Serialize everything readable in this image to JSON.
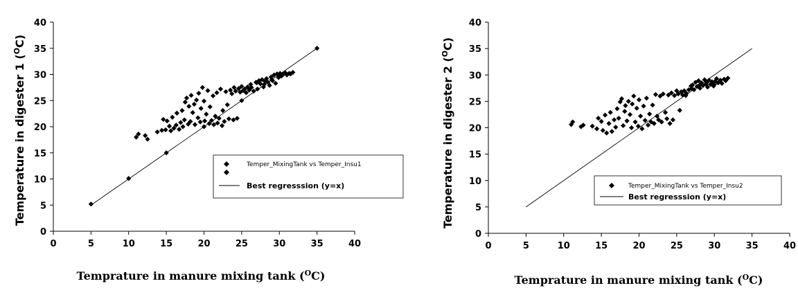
{
  "chart_data": [
    {
      "type": "scatter",
      "xlabel": "Temprature in manure mixing tank (",
      "xlabel_sup": "O",
      "xlabel_end": "C)",
      "ylabel": "Temperature in digester 1 (",
      "ylabel_sup": "O",
      "ylabel_end": "C)",
      "xlim": [
        0,
        40
      ],
      "ylim": [
        0,
        40
      ],
      "xticks": [
        0,
        5,
        10,
        15,
        20,
        25,
        30,
        35,
        40
      ],
      "yticks": [
        0,
        5,
        10,
        15,
        20,
        25,
        30,
        35,
        40
      ],
      "grid": false,
      "legend": [
        {
          "label": "Temper_MixingTank vs Temper_Insu1",
          "marker": "diamond"
        },
        {
          "label": "Best regresssion (y=x)",
          "marker": "line"
        }
      ],
      "series": [
        {
          "name": "Temper_MixingTank vs Temper_Insu1",
          "points": [
            [
              5,
              5.2
            ],
            [
              10,
              10.1
            ],
            [
              15,
              15
            ],
            [
              20,
              20
            ],
            [
              25,
              25
            ],
            [
              30,
              30
            ],
            [
              35,
              35
            ],
            [
              11,
              18
            ],
            [
              11.3,
              18.6
            ],
            [
              12.2,
              18.3
            ],
            [
              12.5,
              17.6
            ],
            [
              13.8,
              19
            ],
            [
              14.4,
              19.3
            ],
            [
              14.6,
              21.4
            ],
            [
              14.9,
              19.4
            ],
            [
              15.1,
              21.1
            ],
            [
              15.4,
              20.1
            ],
            [
              15.6,
              19.2
            ],
            [
              15.8,
              21.8
            ],
            [
              16,
              19.7
            ],
            [
              16.3,
              20.3
            ],
            [
              16.4,
              22.6
            ],
            [
              16.7,
              19.5
            ],
            [
              16.9,
              20.8
            ],
            [
              17.1,
              23.1
            ],
            [
              17.2,
              20
            ],
            [
              17.4,
              21.3
            ],
            [
              17.5,
              24.7
            ],
            [
              17.7,
              25.5
            ],
            [
              17.9,
              20.5
            ],
            [
              18,
              23.9
            ],
            [
              18.2,
              21
            ],
            [
              18.3,
              26
            ],
            [
              18.5,
              22.7
            ],
            [
              18.7,
              24.3
            ],
            [
              18.8,
              20.4
            ],
            [
              19,
              25.1
            ],
            [
              19.2,
              21.7
            ],
            [
              19.3,
              26.4
            ],
            [
              19.5,
              20.9
            ],
            [
              19.6,
              23.5
            ],
            [
              19.8,
              27.5
            ],
            [
              20,
              24.9
            ],
            [
              20.1,
              21.1
            ],
            [
              20.3,
              22.4
            ],
            [
              20.5,
              26.9
            ],
            [
              20.7,
              20.6
            ],
            [
              20.8,
              23.8
            ],
            [
              21,
              21.2
            ],
            [
              21.2,
              25.9
            ],
            [
              21.3,
              20.4
            ],
            [
              21.5,
              22
            ],
            [
              21.7,
              26.5
            ],
            [
              21.8,
              20.7
            ],
            [
              22,
              21.6
            ],
            [
              22.2,
              27.2
            ],
            [
              22.4,
              20.2
            ],
            [
              22.5,
              23.1
            ],
            [
              22.7,
              21
            ],
            [
              22.9,
              26.7
            ],
            [
              23.1,
              24.2
            ],
            [
              23.3,
              21.5
            ],
            [
              23.5,
              27
            ],
            [
              23.7,
              26.3
            ],
            [
              23.9,
              21.3
            ],
            [
              24,
              27.5
            ],
            [
              24.2,
              26.8
            ],
            [
              24.4,
              21.6
            ],
            [
              24.6,
              27.3
            ],
            [
              24.8,
              26.6
            ],
            [
              25,
              27.7
            ],
            [
              25.2,
              26.9
            ],
            [
              25.4,
              27.2
            ],
            [
              25.6,
              26.5
            ],
            [
              25.8,
              27.6
            ],
            [
              26,
              27
            ],
            [
              26.3,
              27.5
            ],
            [
              26.6,
              26.8
            ],
            [
              26.9,
              28.5
            ],
            [
              27.1,
              27.2
            ],
            [
              27.3,
              28.8
            ],
            [
              27.5,
              28.2
            ],
            [
              27.7,
              29
            ],
            [
              27.9,
              27.6
            ],
            [
              28.1,
              28.7
            ],
            [
              28.3,
              29.2
            ],
            [
              28.5,
              28.5
            ],
            [
              28.7,
              27.9
            ],
            [
              28.9,
              29.5
            ],
            [
              29.1,
              28.8
            ],
            [
              29.3,
              29.9
            ],
            [
              29.5,
              28.3
            ],
            [
              29.7,
              30.1
            ],
            [
              29.9,
              29.4
            ],
            [
              30.1,
              30.2
            ],
            [
              30.3,
              29.7
            ],
            [
              30.5,
              30
            ],
            [
              30.8,
              30.3
            ],
            [
              31,
              29.9
            ],
            [
              31.3,
              30.2
            ],
            [
              31.5,
              30.1
            ],
            [
              31.8,
              30.4
            ],
            [
              26.2,
              28.1
            ],
            [
              27,
              28.4
            ],
            [
              28,
              28.1
            ],
            [
              29,
              29
            ],
            [
              30,
              29.6
            ]
          ]
        },
        {
          "name": "Best regresssion (y=x)",
          "line": [
            [
              5,
              5
            ],
            [
              35,
              35
            ]
          ]
        }
      ]
    },
    {
      "type": "scatter",
      "xlabel": "Temprature in manure mixing tank (",
      "xlabel_sup": "O",
      "xlabel_end": "C)",
      "ylabel": "Temperature in digester 2 (",
      "ylabel_sup": "O",
      "ylabel_end": "C)",
      "xlim": [
        0,
        40
      ],
      "ylim": [
        0,
        40
      ],
      "xticks": [
        0,
        5,
        10,
        15,
        20,
        25,
        30,
        35,
        40
      ],
      "yticks": [
        0,
        5,
        10,
        15,
        20,
        25,
        30,
        35,
        40
      ],
      "grid": false,
      "legend": [
        {
          "label": "Temper_MixingTank vs Temper_Insu2",
          "marker": "diamond"
        },
        {
          "label": "Best regresssion (y=x)",
          "marker": "line"
        }
      ],
      "series": [
        {
          "name": "Temper_MixingTank vs Temper_Insu2",
          "points": [
            [
              11,
              20.6
            ],
            [
              11.2,
              21.1
            ],
            [
              12.3,
              20.2
            ],
            [
              12.6,
              20.5
            ],
            [
              13.8,
              20.3
            ],
            [
              14.4,
              19.8
            ],
            [
              14.6,
              21.8
            ],
            [
              15,
              21.2
            ],
            [
              15.2,
              19.5
            ],
            [
              15.5,
              22.4
            ],
            [
              15.7,
              19
            ],
            [
              16,
              20.8
            ],
            [
              16.2,
              22.9
            ],
            [
              16.4,
              19.3
            ],
            [
              16.7,
              21.5
            ],
            [
              16.9,
              20.1
            ],
            [
              17.1,
              23.6
            ],
            [
              17.3,
              21.8
            ],
            [
              17.5,
              24.9
            ],
            [
              17.7,
              25.5
            ],
            [
              17.9,
              20.4
            ],
            [
              18.1,
              23.1
            ],
            [
              18.2,
              24.2
            ],
            [
              18.4,
              21.3
            ],
            [
              18.6,
              25
            ],
            [
              18.8,
              22.5
            ],
            [
              19,
              20
            ],
            [
              19.1,
              24.5
            ],
            [
              19.3,
              26
            ],
            [
              19.5,
              21.1
            ],
            [
              19.7,
              23.7
            ],
            [
              19.9,
              20.3
            ],
            [
              20,
              25.3
            ],
            [
              20.2,
              22.2
            ],
            [
              20.4,
              19.8
            ],
            [
              20.6,
              24.1
            ],
            [
              20.8,
              21.4
            ],
            [
              21,
              25.6
            ],
            [
              21.2,
              20.5
            ],
            [
              21.4,
              22.6
            ],
            [
              21.6,
              21.1
            ],
            [
              21.8,
              24.3
            ],
            [
              22,
              20.8
            ],
            [
              22.2,
              26.3
            ],
            [
              22.4,
              22.2
            ],
            [
              22.6,
              21.5
            ],
            [
              22.8,
              26
            ],
            [
              23,
              21.1
            ],
            [
              23.2,
              26.4
            ],
            [
              23.5,
              22.9
            ],
            [
              23.7,
              21.7
            ],
            [
              23.9,
              26.2
            ],
            [
              24.1,
              20.8
            ],
            [
              24.3,
              26.6
            ],
            [
              24.5,
              21.5
            ],
            [
              24.7,
              26.1
            ],
            [
              25,
              27
            ],
            [
              25.2,
              26.4
            ],
            [
              25.4,
              23.3
            ],
            [
              25.6,
              26.8
            ],
            [
              25.8,
              26.2
            ],
            [
              26,
              27
            ],
            [
              26.3,
              26.5
            ],
            [
              26.6,
              27.2
            ],
            [
              26.9,
              27.9
            ],
            [
              27.1,
              28.1
            ],
            [
              27.3,
              27.2
            ],
            [
              27.5,
              28.6
            ],
            [
              27.7,
              27.8
            ],
            [
              27.9,
              28.9
            ],
            [
              28.1,
              27.5
            ],
            [
              28.3,
              28.5
            ],
            [
              28.5,
              28
            ],
            [
              28.7,
              29.1
            ],
            [
              28.9,
              28.3
            ],
            [
              29.1,
              27.7
            ],
            [
              29.3,
              29
            ],
            [
              29.5,
              28.2
            ],
            [
              29.7,
              28.7
            ],
            [
              29.9,
              27.9
            ],
            [
              30.1,
              28.8
            ],
            [
              30.3,
              29.3
            ],
            [
              30.5,
              28.5
            ],
            [
              30.8,
              29
            ],
            [
              31,
              28.4
            ],
            [
              31.3,
              29.2
            ],
            [
              31.5,
              28.9
            ],
            [
              31.8,
              29.4
            ],
            [
              26.2,
              26.1
            ],
            [
              27,
              27.4
            ],
            [
              28,
              28
            ],
            [
              29,
              28.6
            ],
            [
              30,
              28.2
            ]
          ]
        },
        {
          "name": "Best regresssion (y=x)",
          "line": [
            [
              5,
              5
            ],
            [
              35,
              35
            ]
          ]
        }
      ]
    }
  ]
}
